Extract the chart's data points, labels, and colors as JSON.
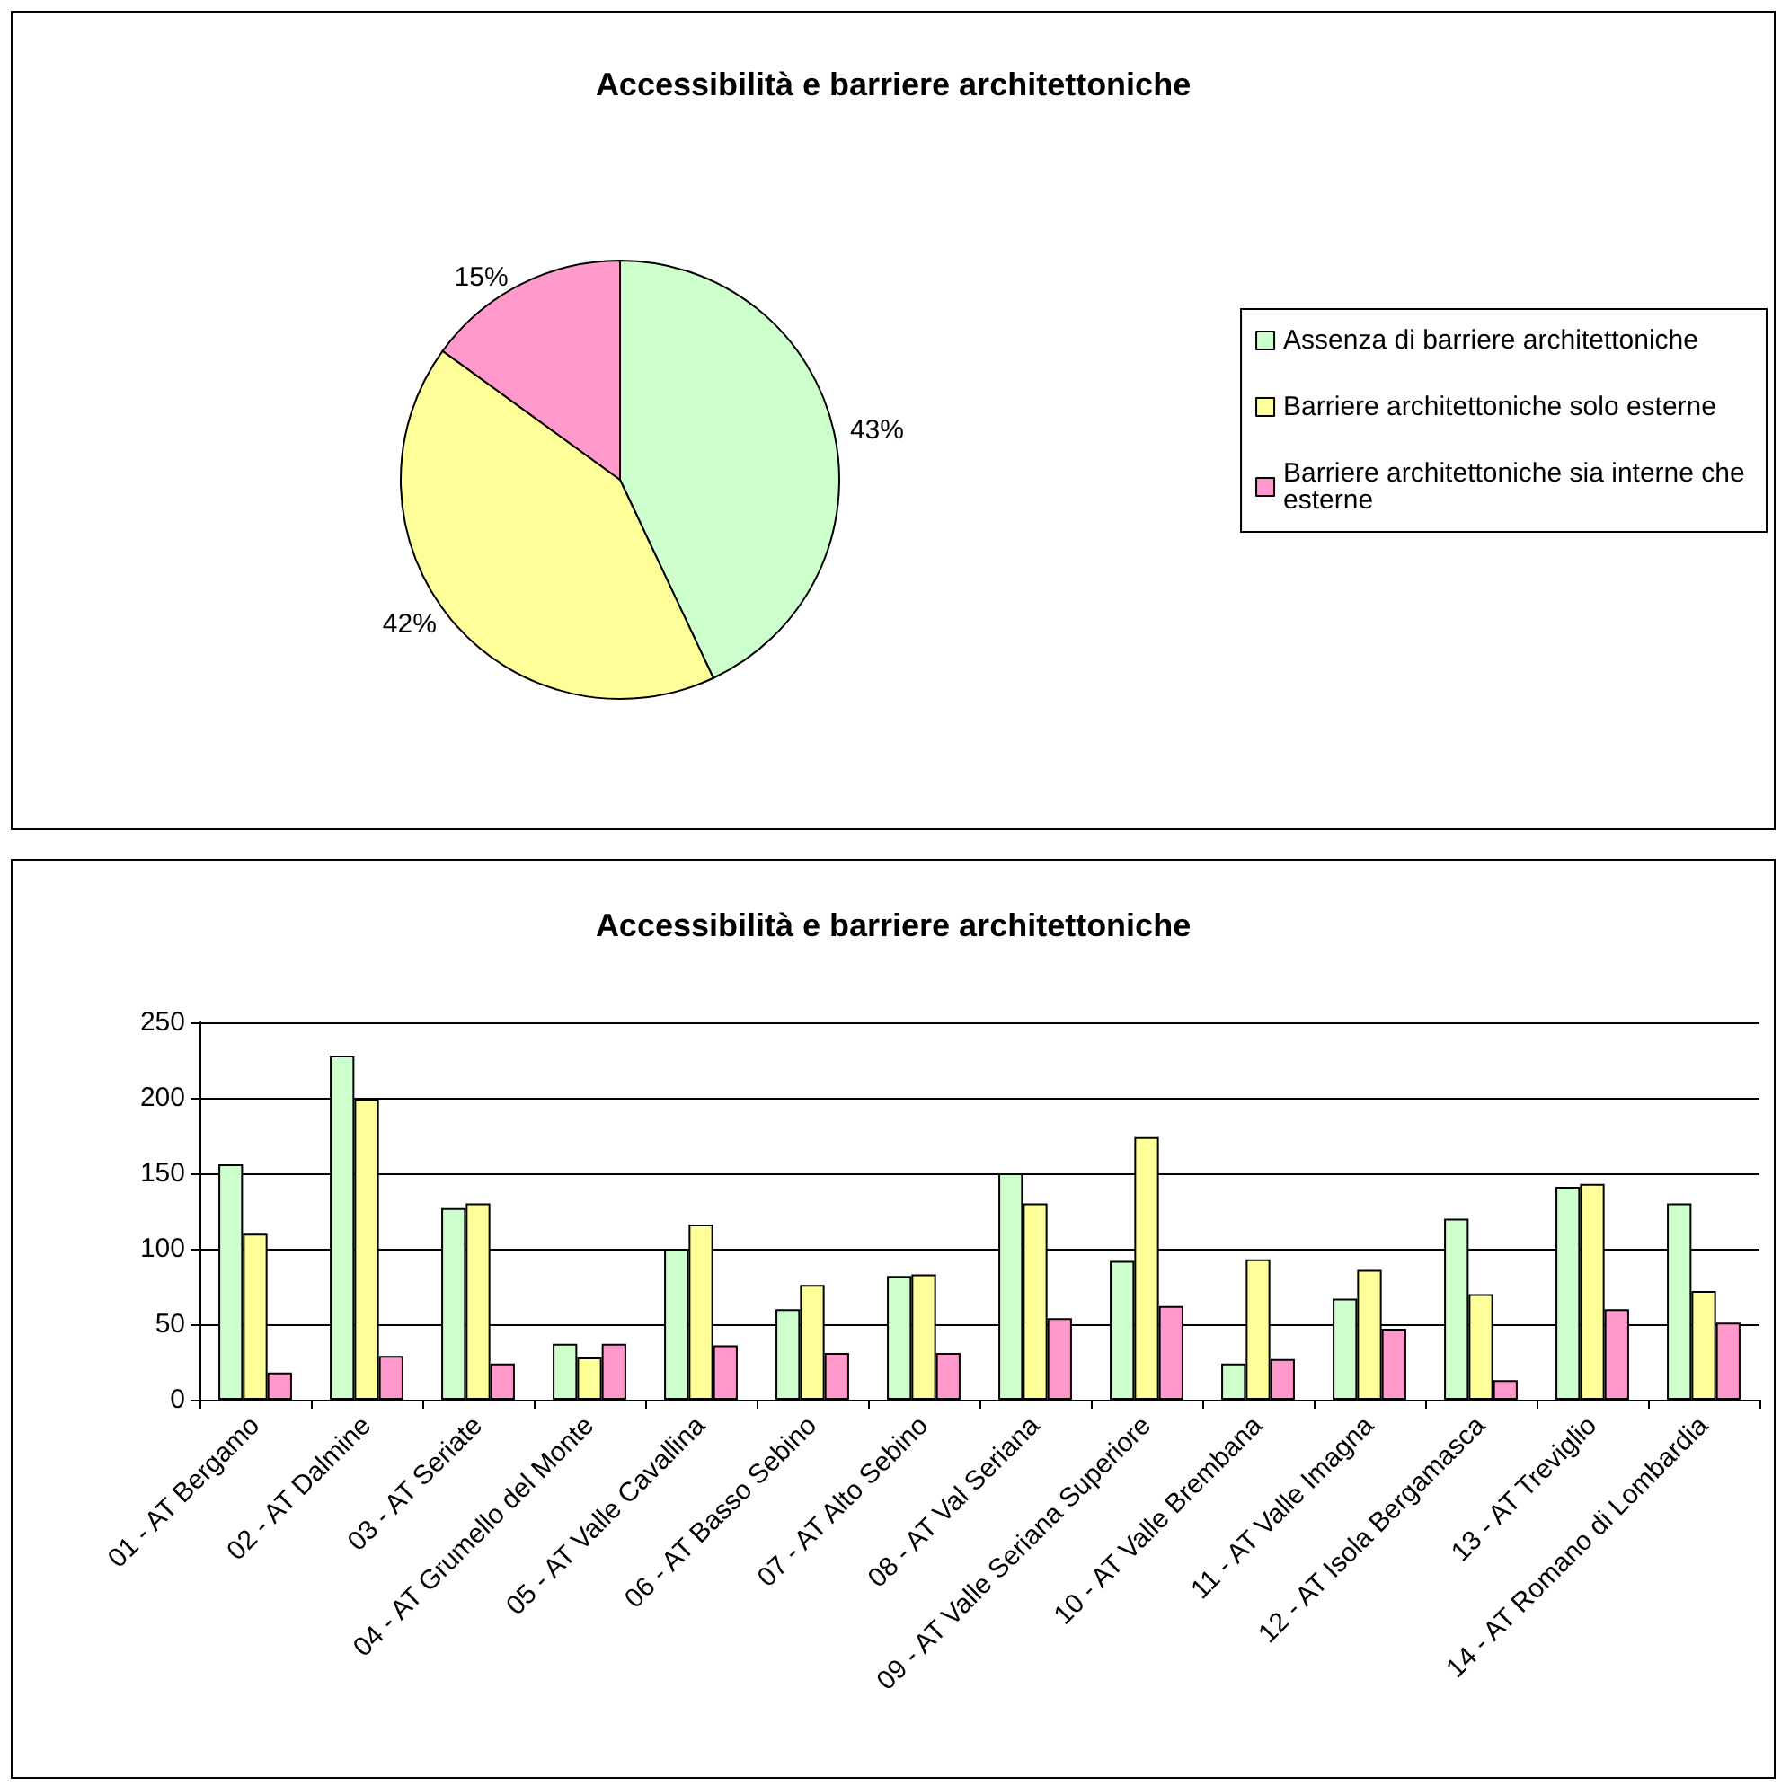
{
  "chart_data": [
    {
      "type": "pie",
      "title": "Accessibilità e barriere architettoniche",
      "categories": [
        "Assenza di barriere architettoniche",
        "Barriere architettoniche solo esterne",
        "Barriere architettoniche sia interne che esterne"
      ],
      "values": [
        43,
        42,
        15
      ],
      "value_labels": [
        "43%",
        "42%",
        "15%"
      ],
      "colors": [
        "#ccffcc",
        "#ffff99",
        "#ff99cc"
      ],
      "legend": "right"
    },
    {
      "type": "bar",
      "title": "Accessibilità e barriere architettoniche",
      "categories": [
        "01 - AT Bergamo",
        "02 - AT Dalmine",
        "03 - AT Seriate",
        "04 - AT Grumello del Monte",
        "05 - AT Valle Cavallina",
        "06 - AT Basso Sebino",
        "07 - AT Alto Sebino",
        "08 - AT Val Seriana",
        "09 - AT Valle Seriana Superiore",
        "10 - AT Valle Brembana",
        "11 - AT Valle Imagna",
        "12 - AT Isola Bergamasca",
        "13 - AT Treviglio",
        "14 - AT Romano di Lombardia"
      ],
      "series": [
        {
          "color": "#ccffcc",
          "values": [
            156,
            228,
            127,
            37,
            100,
            60,
            82,
            150,
            92,
            24,
            67,
            120,
            141,
            130
          ]
        },
        {
          "color": "#ffff99",
          "values": [
            110,
            199,
            130,
            28,
            116,
            76,
            83,
            130,
            174,
            93,
            86,
            70,
            143,
            72
          ]
        },
        {
          "color": "#ff99cc",
          "values": [
            18,
            29,
            24,
            37,
            36,
            31,
            31,
            54,
            62,
            27,
            47,
            13,
            60,
            51
          ]
        }
      ],
      "ylim": [
        0,
        250
      ],
      "yticks": [
        0,
        50,
        100,
        150,
        200,
        250
      ],
      "grid": "y",
      "legend": false
    }
  ]
}
